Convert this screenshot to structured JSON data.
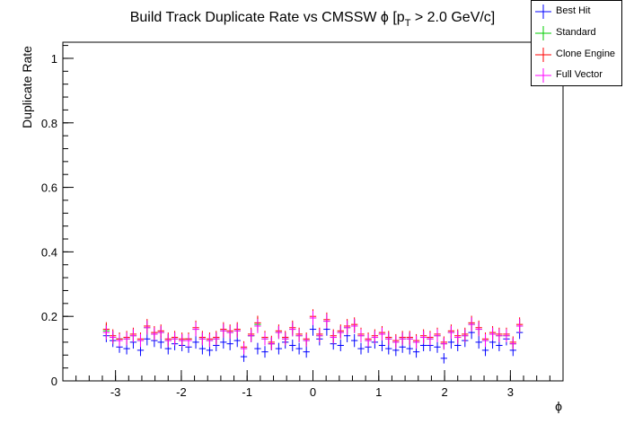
{
  "chart_data": {
    "type": "scatter",
    "title": "Build Track Duplicate Rate vs CMSSW ϕ [p",
    "title_sub": "T",
    "title_tail": " > 2.0 GeV/c]",
    "xlabel": "ϕ",
    "ylabel": "Duplicate Rate",
    "xlim": [
      -3.8,
      3.8
    ],
    "ylim": [
      0,
      1.05
    ],
    "x_ticks": [
      -3,
      -2,
      -1,
      0,
      1,
      2,
      3
    ],
    "x_tick_labels": [
      "-3",
      "-2",
      "-1",
      "0",
      "1",
      "2",
      "3"
    ],
    "y_ticks": [
      0,
      0.2,
      0.4,
      0.6,
      0.8,
      1
    ],
    "y_tick_labels": [
      "0",
      "0.2",
      "0.4",
      "0.6",
      "0.8",
      "1"
    ],
    "bin_half_width": 0.05,
    "x": [
      -3.14,
      -3.04,
      -2.94,
      -2.83,
      -2.73,
      -2.62,
      -2.52,
      -2.41,
      -2.31,
      -2.2,
      -2.1,
      -1.99,
      -1.89,
      -1.78,
      -1.68,
      -1.57,
      -1.47,
      -1.36,
      -1.26,
      -1.15,
      -1.05,
      -0.94,
      -0.84,
      -0.73,
      -0.63,
      -0.52,
      -0.42,
      -0.31,
      -0.21,
      -0.1,
      0.0,
      0.1,
      0.21,
      0.31,
      0.42,
      0.52,
      0.63,
      0.73,
      0.84,
      0.94,
      1.05,
      1.15,
      1.26,
      1.36,
      1.47,
      1.57,
      1.68,
      1.78,
      1.89,
      1.99,
      2.1,
      2.2,
      2.31,
      2.41,
      2.52,
      2.62,
      2.73,
      2.83,
      2.94,
      3.04,
      3.14
    ],
    "series": [
      {
        "name": "Best Hit",
        "color": "#0000ff",
        "values": [
          0.14,
          0.125,
          0.105,
          0.1,
          0.12,
          0.095,
          0.13,
          0.125,
          0.12,
          0.1,
          0.115,
          0.11,
          0.105,
          0.12,
          0.1,
          0.095,
          0.11,
          0.12,
          0.115,
          0.125,
          0.075,
          0.14,
          0.1,
          0.09,
          0.115,
          0.1,
          0.12,
          0.11,
          0.1,
          0.09,
          0.16,
          0.13,
          0.16,
          0.115,
          0.11,
          0.14,
          0.125,
          0.1,
          0.105,
          0.12,
          0.11,
          0.1,
          0.095,
          0.105,
          0.1,
          0.09,
          0.11,
          0.11,
          0.105,
          0.07,
          0.12,
          0.11,
          0.125,
          0.15,
          0.12,
          0.095,
          0.12,
          0.11,
          0.13,
          0.095,
          0.15
        ],
        "errors": [
          0.02,
          0.02,
          0.018,
          0.018,
          0.02,
          0.018,
          0.02,
          0.02,
          0.02,
          0.018,
          0.02,
          0.018,
          0.018,
          0.02,
          0.018,
          0.018,
          0.018,
          0.02,
          0.02,
          0.02,
          0.016,
          0.02,
          0.018,
          0.018,
          0.02,
          0.018,
          0.02,
          0.018,
          0.018,
          0.018,
          0.02,
          0.02,
          0.02,
          0.018,
          0.018,
          0.02,
          0.02,
          0.018,
          0.018,
          0.02,
          0.018,
          0.018,
          0.018,
          0.018,
          0.018,
          0.018,
          0.018,
          0.018,
          0.018,
          0.016,
          0.02,
          0.018,
          0.02,
          0.02,
          0.02,
          0.018,
          0.02,
          0.018,
          0.02,
          0.018,
          0.02
        ]
      },
      {
        "name": "Standard",
        "color": "#00cc00",
        "values": [
          0.155,
          0.135,
          0.13,
          0.13,
          0.14,
          0.125,
          0.165,
          0.145,
          0.15,
          0.125,
          0.13,
          0.125,
          0.13,
          0.16,
          0.13,
          0.125,
          0.13,
          0.155,
          0.15,
          0.155,
          0.1,
          0.14,
          0.175,
          0.13,
          0.115,
          0.15,
          0.13,
          0.16,
          0.14,
          0.125,
          0.195,
          0.14,
          0.185,
          0.135,
          0.15,
          0.165,
          0.17,
          0.14,
          0.125,
          0.135,
          0.145,
          0.13,
          0.12,
          0.13,
          0.13,
          0.12,
          0.135,
          0.13,
          0.14,
          0.115,
          0.15,
          0.135,
          0.14,
          0.175,
          0.16,
          0.125,
          0.145,
          0.14,
          0.14,
          0.115,
          0.17
        ],
        "errors": [
          0.022,
          0.02,
          0.02,
          0.02,
          0.02,
          0.02,
          0.022,
          0.02,
          0.02,
          0.02,
          0.02,
          0.02,
          0.02,
          0.022,
          0.02,
          0.02,
          0.02,
          0.022,
          0.02,
          0.022,
          0.018,
          0.02,
          0.022,
          0.02,
          0.02,
          0.02,
          0.02,
          0.022,
          0.02,
          0.02,
          0.022,
          0.02,
          0.022,
          0.02,
          0.02,
          0.022,
          0.022,
          0.02,
          0.02,
          0.02,
          0.02,
          0.02,
          0.02,
          0.02,
          0.02,
          0.02,
          0.02,
          0.02,
          0.02,
          0.018,
          0.02,
          0.02,
          0.02,
          0.022,
          0.022,
          0.02,
          0.02,
          0.02,
          0.02,
          0.018,
          0.022
        ]
      },
      {
        "name": "Clone Engine",
        "color": "#ff0000",
        "values": [
          0.16,
          0.14,
          0.13,
          0.135,
          0.145,
          0.13,
          0.17,
          0.15,
          0.155,
          0.13,
          0.135,
          0.13,
          0.13,
          0.165,
          0.135,
          0.13,
          0.135,
          0.16,
          0.155,
          0.16,
          0.105,
          0.145,
          0.18,
          0.135,
          0.12,
          0.155,
          0.135,
          0.165,
          0.145,
          0.13,
          0.2,
          0.145,
          0.19,
          0.14,
          0.155,
          0.17,
          0.175,
          0.145,
          0.13,
          0.14,
          0.15,
          0.135,
          0.125,
          0.135,
          0.135,
          0.125,
          0.14,
          0.135,
          0.145,
          0.12,
          0.155,
          0.14,
          0.145,
          0.18,
          0.165,
          0.13,
          0.15,
          0.145,
          0.145,
          0.12,
          0.175
        ],
        "errors": [
          0.022,
          0.02,
          0.02,
          0.02,
          0.02,
          0.02,
          0.022,
          0.02,
          0.02,
          0.02,
          0.02,
          0.02,
          0.02,
          0.022,
          0.02,
          0.02,
          0.02,
          0.022,
          0.02,
          0.022,
          0.018,
          0.02,
          0.022,
          0.02,
          0.02,
          0.02,
          0.02,
          0.022,
          0.02,
          0.02,
          0.022,
          0.02,
          0.022,
          0.02,
          0.02,
          0.022,
          0.022,
          0.02,
          0.02,
          0.02,
          0.02,
          0.02,
          0.02,
          0.02,
          0.02,
          0.02,
          0.02,
          0.02,
          0.02,
          0.018,
          0.02,
          0.02,
          0.02,
          0.022,
          0.022,
          0.02,
          0.02,
          0.02,
          0.02,
          0.018,
          0.022
        ]
      },
      {
        "name": "Full Vector",
        "color": "#ff00ff",
        "values": [
          0.15,
          0.135,
          0.125,
          0.13,
          0.14,
          0.125,
          0.165,
          0.145,
          0.15,
          0.125,
          0.13,
          0.125,
          0.125,
          0.16,
          0.13,
          0.125,
          0.13,
          0.155,
          0.15,
          0.155,
          0.1,
          0.14,
          0.17,
          0.13,
          0.115,
          0.15,
          0.13,
          0.16,
          0.14,
          0.125,
          0.195,
          0.14,
          0.185,
          0.135,
          0.15,
          0.165,
          0.17,
          0.14,
          0.125,
          0.135,
          0.145,
          0.13,
          0.12,
          0.13,
          0.13,
          0.12,
          0.135,
          0.13,
          0.14,
          0.115,
          0.15,
          0.135,
          0.14,
          0.175,
          0.16,
          0.125,
          0.145,
          0.14,
          0.14,
          0.115,
          0.17
        ],
        "errors": [
          0.022,
          0.02,
          0.02,
          0.02,
          0.02,
          0.02,
          0.022,
          0.02,
          0.02,
          0.02,
          0.02,
          0.02,
          0.02,
          0.022,
          0.02,
          0.02,
          0.02,
          0.022,
          0.02,
          0.022,
          0.018,
          0.02,
          0.022,
          0.02,
          0.02,
          0.02,
          0.02,
          0.022,
          0.02,
          0.02,
          0.022,
          0.02,
          0.022,
          0.02,
          0.02,
          0.022,
          0.022,
          0.02,
          0.02,
          0.02,
          0.02,
          0.02,
          0.02,
          0.02,
          0.02,
          0.02,
          0.02,
          0.02,
          0.02,
          0.018,
          0.02,
          0.02,
          0.02,
          0.022,
          0.022,
          0.02,
          0.02,
          0.02,
          0.02,
          0.018,
          0.022
        ]
      }
    ],
    "legend": {
      "position": "top-right",
      "entries": [
        "Best Hit",
        "Standard",
        "Clone Engine",
        "Full Vector"
      ]
    },
    "grid": false
  }
}
